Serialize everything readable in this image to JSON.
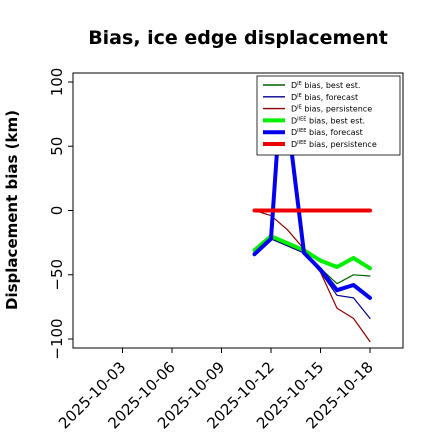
{
  "chart_data": {
    "type": "line",
    "title": "Bias, ice edge displacement",
    "xlabel": "",
    "ylabel": "Displacement bias (km)",
    "ylim": [
      -107,
      107
    ],
    "yticks": [
      100,
      50,
      0,
      -50,
      -100
    ],
    "ytick_labels": [
      "100",
      "50",
      "0",
      "−50",
      "−100"
    ],
    "xlim": [
      "2025-09-30",
      "2025-10-20"
    ],
    "xticks": [
      {
        "date": "2025-10-03",
        "label": "2025-10-03",
        "color": "#000000"
      },
      {
        "date": "2025-10-06",
        "label": "2025-10-06",
        "color": "#000000"
      },
      {
        "date": "2025-10-09",
        "label": "2025-10-09",
        "color": "#228b22"
      },
      {
        "date": "2025-10-12",
        "label": "2025-10-12",
        "color": "#000000"
      },
      {
        "date": "2025-10-15",
        "label": "2025-10-15",
        "color": "#000000"
      },
      {
        "date": "2025-10-18",
        "label": "2025-10-18",
        "color": "#000000"
      }
    ],
    "grid": false,
    "legend_position": "top-right",
    "series": [
      {
        "id": "de-best",
        "legend": {
          "base": "D",
          "sup": "IE",
          "rest": " bias, best est."
        },
        "color": "#006400",
        "width": 1.2,
        "points": [
          [
            "2025-10-11",
            -33
          ],
          [
            "2025-10-12",
            -22
          ],
          [
            "2025-10-14",
            -33
          ],
          [
            "2025-10-15",
            -45
          ],
          [
            "2025-10-16",
            -57
          ],
          [
            "2025-10-17",
            -50
          ],
          [
            "2025-10-18",
            -51
          ]
        ]
      },
      {
        "id": "de-fore",
        "legend": {
          "base": "D",
          "sup": "IE",
          "rest": " bias, forecast"
        },
        "color": "#00008b",
        "width": 1.2,
        "points": [
          [
            "2025-10-11",
            -33
          ],
          [
            "2025-10-12",
            -22
          ],
          [
            "2025-10-14",
            -33
          ],
          [
            "2025-10-15",
            -48
          ],
          [
            "2025-10-16",
            -66
          ],
          [
            "2025-10-17",
            -68
          ],
          [
            "2025-10-18",
            -84
          ]
        ]
      },
      {
        "id": "de-pers",
        "legend": {
          "base": "D",
          "sup": "IE",
          "rest": " bias, persistence"
        },
        "color": "#8b0000",
        "width": 1.2,
        "points": [
          [
            "2025-10-11",
            0
          ],
          [
            "2025-10-12",
            -4
          ],
          [
            "2025-10-13",
            -15
          ],
          [
            "2025-10-14",
            -30
          ],
          [
            "2025-10-15",
            -48
          ],
          [
            "2025-10-16",
            -76
          ],
          [
            "2025-10-17",
            -84
          ],
          [
            "2025-10-18",
            -102
          ]
        ]
      },
      {
        "id": "diie-best",
        "legend": {
          "base": "D",
          "sup": "IIEE",
          "rest": " bias, best est."
        },
        "color": "#00ee00",
        "width": 4,
        "points": [
          [
            "2025-10-11",
            -31
          ],
          [
            "2025-10-12",
            -20
          ],
          [
            "2025-10-14",
            -31
          ],
          [
            "2025-10-15",
            -39
          ],
          [
            "2025-10-16",
            -44
          ],
          [
            "2025-10-17",
            -37
          ],
          [
            "2025-10-18",
            -45
          ]
        ]
      },
      {
        "id": "diie-fore",
        "legend": {
          "base": "D",
          "sup": "IIEE",
          "rest": " bias, forecast"
        },
        "color": "#0000ee",
        "width": 4,
        "points": [
          [
            "2025-10-11",
            -34
          ],
          [
            "2025-10-12",
            -22
          ],
          [
            "2025-10-12.5",
            72
          ],
          [
            "2025-10-13",
            72
          ],
          [
            "2025-10-14",
            -33
          ],
          [
            "2025-10-15",
            -46
          ],
          [
            "2025-10-16",
            -62
          ],
          [
            "2025-10-17",
            -58
          ],
          [
            "2025-10-18",
            -68
          ]
        ]
      },
      {
        "id": "diie-pers",
        "legend": {
          "base": "D",
          "sup": "IIEE",
          "rest": " bias, persistence"
        },
        "color": "#ee0000",
        "width": 4,
        "points": [
          [
            "2025-10-11",
            0
          ],
          [
            "2025-10-12",
            0
          ],
          [
            "2025-10-13",
            0
          ],
          [
            "2025-10-14",
            0
          ],
          [
            "2025-10-15",
            0
          ],
          [
            "2025-10-16",
            0
          ],
          [
            "2025-10-17",
            0
          ],
          [
            "2025-10-18",
            0
          ]
        ]
      }
    ]
  }
}
